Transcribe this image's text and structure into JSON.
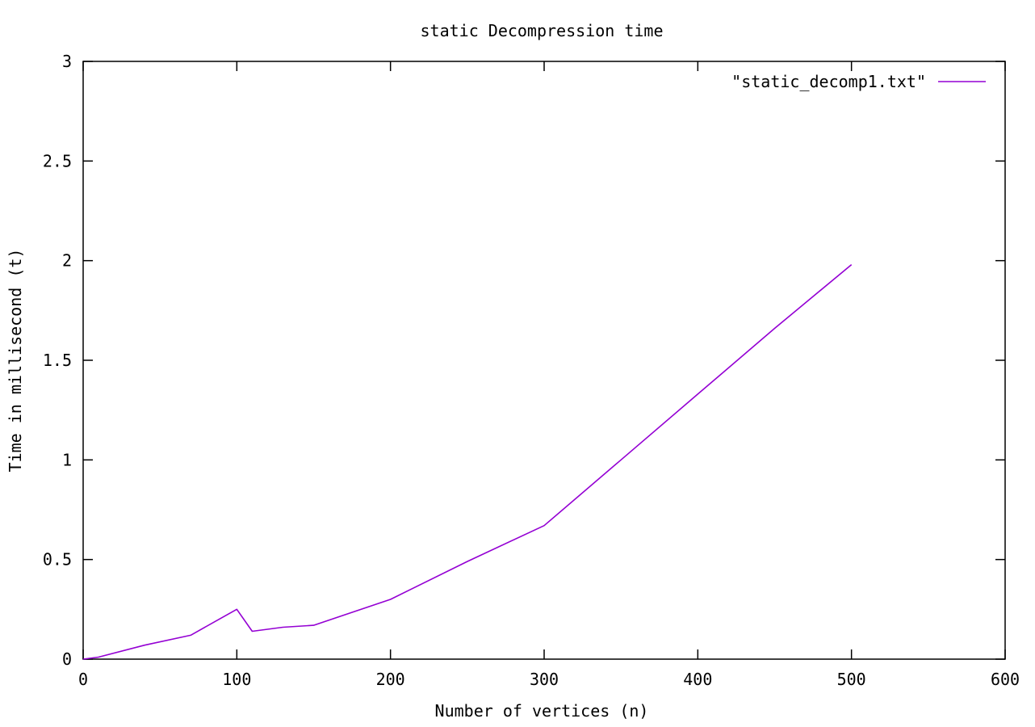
{
  "chart_data": {
    "type": "line",
    "title": "static Decompression time",
    "xlabel": "Number of vertices (n)",
    "ylabel": "Time in millisecond (t)",
    "xlim": [
      0,
      600
    ],
    "ylim": [
      0,
      3
    ],
    "xticks": [
      {
        "value": 0,
        "label": "0"
      },
      {
        "value": 100,
        "label": "100"
      },
      {
        "value": 200,
        "label": "200"
      },
      {
        "value": 300,
        "label": "300"
      },
      {
        "value": 400,
        "label": "400"
      },
      {
        "value": 500,
        "label": "500"
      },
      {
        "value": 600,
        "label": "600"
      }
    ],
    "yticks": [
      {
        "value": 0,
        "label": "0"
      },
      {
        "value": 0.5,
        "label": "0.5"
      },
      {
        "value": 1,
        "label": "1"
      },
      {
        "value": 1.5,
        "label": "1.5"
      },
      {
        "value": 2,
        "label": "2"
      },
      {
        "value": 2.5,
        "label": "2.5"
      },
      {
        "value": 3,
        "label": "3"
      }
    ],
    "grid": false,
    "legend_position": "top-right",
    "series": [
      {
        "name": "\"static_decomp1.txt\"",
        "color": "#9400d3",
        "x": [
          0,
          10,
          40,
          70,
          100,
          110,
          130,
          150,
          200,
          250,
          300,
          350,
          400,
          450,
          500
        ],
        "y": [
          0,
          0.01,
          0.07,
          0.12,
          0.25,
          0.14,
          0.16,
          0.17,
          0.3,
          0.49,
          0.67,
          1.0,
          1.33,
          1.66,
          1.98
        ]
      }
    ]
  }
}
